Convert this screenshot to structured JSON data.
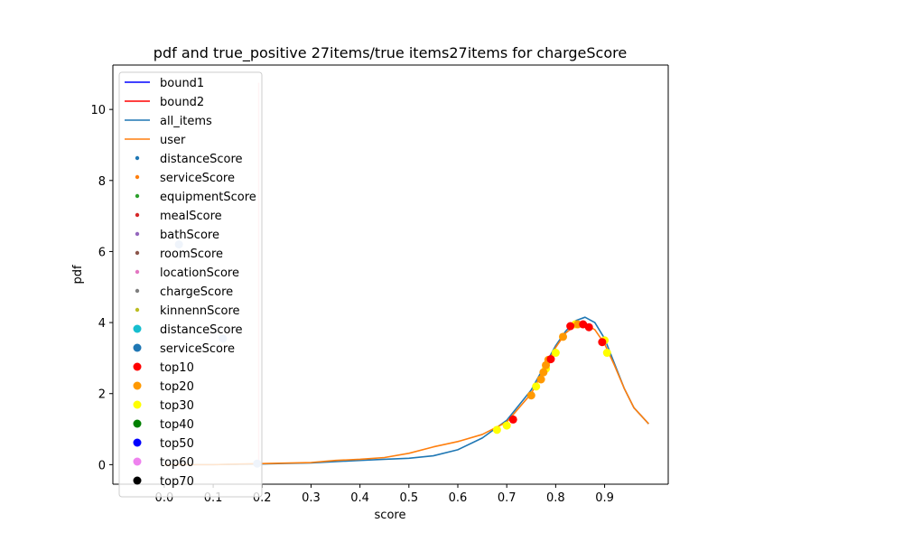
{
  "chart_data": {
    "type": "line",
    "title": "pdf and true_positive 27items/true items27items for chargeScore",
    "xlabel": "score",
    "ylabel": "pdf",
    "xlim": [
      -0.105,
      1.03
    ],
    "ylim": [
      -0.55,
      11.25
    ],
    "xticks": [
      0.0,
      0.1,
      0.2,
      0.3,
      0.4,
      0.5,
      0.6,
      0.7,
      0.8,
      0.9
    ],
    "xtick_labels": [
      "0.0",
      "0.1",
      "0.2",
      "0.3",
      "0.4",
      "0.5",
      "0.6",
      "0.7",
      "0.8",
      "0.9"
    ],
    "yticks": [
      0,
      2,
      4,
      6,
      8,
      10
    ],
    "ytick_labels": [
      "0",
      "2",
      "4",
      "6",
      "8",
      "10"
    ],
    "grid": false,
    "legend_position": "upper-left",
    "vlines": [
      {
        "name": "bound1",
        "x": 0.193,
        "y": [
          0,
          10.75
        ],
        "color": "#ffc0cb"
      }
    ],
    "series": [
      {
        "name": "all_items",
        "kind": "line",
        "color": "#1f77b4",
        "x": [
          0.0,
          0.1,
          0.2,
          0.3,
          0.4,
          0.45,
          0.5,
          0.55,
          0.6,
          0.65,
          0.7,
          0.75,
          0.8,
          0.82,
          0.84,
          0.86,
          0.88,
          0.9,
          0.92,
          0.94,
          0.96,
          0.99
        ],
        "y": [
          0.0,
          0.0,
          0.02,
          0.05,
          0.12,
          0.15,
          0.18,
          0.25,
          0.42,
          0.75,
          1.25,
          2.1,
          3.35,
          3.75,
          4.05,
          4.15,
          4.0,
          3.55,
          2.85,
          2.15,
          1.6,
          1.15
        ]
      },
      {
        "name": "user",
        "kind": "line",
        "color": "#ff7f0e",
        "x": [
          0.0,
          0.1,
          0.2,
          0.3,
          0.35,
          0.4,
          0.45,
          0.5,
          0.55,
          0.6,
          0.65,
          0.7,
          0.75,
          0.8,
          0.82,
          0.84,
          0.86,
          0.88,
          0.9,
          0.92,
          0.94,
          0.96,
          0.99
        ],
        "y": [
          0.0,
          0.0,
          0.03,
          0.06,
          0.12,
          0.15,
          0.2,
          0.32,
          0.5,
          0.65,
          0.85,
          1.2,
          2.0,
          3.3,
          3.7,
          3.92,
          3.95,
          3.8,
          3.4,
          2.8,
          2.15,
          1.6,
          1.15
        ]
      },
      {
        "name": "serviceScore",
        "kind": "scatter",
        "color": "#aec7e8",
        "x": [
          0.03,
          0.12,
          0.19
        ],
        "y": [
          6.2,
          3.55,
          0.03
        ]
      },
      {
        "name": "top30",
        "kind": "scatter",
        "color": "#ffff00",
        "x": [
          0.68,
          0.7,
          0.76,
          0.78,
          0.8,
          0.84,
          0.9,
          0.905
        ],
        "y": [
          0.98,
          1.1,
          2.2,
          2.7,
          3.15,
          3.95,
          3.5,
          3.15
        ]
      },
      {
        "name": "top20",
        "kind": "scatter",
        "color": "#ff9900",
        "x": [
          0.75,
          0.77,
          0.775,
          0.78,
          0.785,
          0.815,
          0.845
        ],
        "y": [
          1.95,
          2.4,
          2.6,
          2.8,
          2.95,
          3.6,
          3.95
        ]
      },
      {
        "name": "top10",
        "kind": "scatter",
        "color": "#ff0000",
        "x": [
          0.713,
          0.79,
          0.83,
          0.856,
          0.868,
          0.895
        ],
        "y": [
          1.27,
          2.97,
          3.9,
          3.95,
          3.87,
          3.45
        ]
      }
    ],
    "legend": [
      {
        "label": "bound1",
        "marker": "line",
        "color": "#0000ff"
      },
      {
        "label": "bound2",
        "marker": "line",
        "color": "#ff0000"
      },
      {
        "label": "all_items",
        "marker": "line",
        "color": "#1f77b4"
      },
      {
        "label": "user",
        "marker": "line",
        "color": "#ff7f0e"
      },
      {
        "label": "distanceScore",
        "marker": "small-dot",
        "color": "#1f77b4"
      },
      {
        "label": "serviceScore",
        "marker": "small-dot",
        "color": "#ff7f0e"
      },
      {
        "label": "equipmentScore",
        "marker": "small-dot",
        "color": "#2ca02c"
      },
      {
        "label": "mealScore",
        "marker": "small-dot",
        "color": "#d62728"
      },
      {
        "label": "bathScore",
        "marker": "small-dot",
        "color": "#9467bd"
      },
      {
        "label": "roomScore",
        "marker": "small-dot",
        "color": "#8c564b"
      },
      {
        "label": "locationScore",
        "marker": "small-dot",
        "color": "#e377c2"
      },
      {
        "label": "chargeScore",
        "marker": "small-dot",
        "color": "#7f7f7f"
      },
      {
        "label": "kinnennScore",
        "marker": "small-dot",
        "color": "#bcbd22"
      },
      {
        "label": "distanceScore",
        "marker": "dot",
        "color": "#17becf"
      },
      {
        "label": "serviceScore",
        "marker": "dot",
        "color": "#1f77b4"
      },
      {
        "label": "top10",
        "marker": "dot",
        "color": "#ff0000"
      },
      {
        "label": "top20",
        "marker": "dot",
        "color": "#ff9900"
      },
      {
        "label": "top30",
        "marker": "dot",
        "color": "#ffff00"
      },
      {
        "label": "top40",
        "marker": "dot",
        "color": "#008000"
      },
      {
        "label": "top50",
        "marker": "dot",
        "color": "#0000ff"
      },
      {
        "label": "top60",
        "marker": "dot",
        "color": "#ee82ee"
      },
      {
        "label": "top70",
        "marker": "dot",
        "color": "#000000"
      }
    ]
  }
}
